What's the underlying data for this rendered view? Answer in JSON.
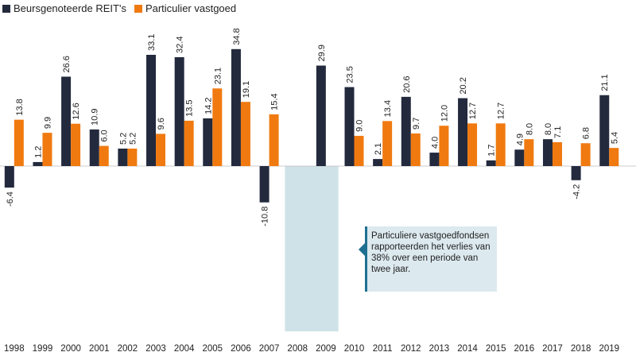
{
  "legend": {
    "series1": "Beursgenoteerde REIT's",
    "series2": "Particulier vastgoed"
  },
  "annotation": {
    "text": "Particuliere vastgoedfondsen rapporteerden het verlies van 38% over een periode van twee jaar."
  },
  "colors": {
    "reits": "#232a3d",
    "private": "#f07a10",
    "highlight": "#cfe2e8",
    "callout_accent": "#1f7090"
  },
  "chart_data": {
    "type": "bar",
    "categories": [
      "1998",
      "1999",
      "2000",
      "2001",
      "2002",
      "2003",
      "2004",
      "2005",
      "2006",
      "2007",
      "2008",
      "2009",
      "2010",
      "2011",
      "2012",
      "2013",
      "2014",
      "2015",
      "2016",
      "2017",
      "2018",
      "2019"
    ],
    "series": [
      {
        "name": "Beursgenoteerde REIT's",
        "values": [
          -6.4,
          1.2,
          26.6,
          10.9,
          5.2,
          33.1,
          32.4,
          14.2,
          34.8,
          -10.8,
          null,
          29.9,
          23.5,
          2.1,
          20.6,
          4.0,
          20.2,
          1.7,
          4.9,
          8.0,
          -4.2,
          21.1
        ]
      },
      {
        "name": "Particulier vastgoed",
        "values": [
          13.8,
          9.9,
          12.6,
          6.0,
          5.2,
          9.6,
          13.5,
          23.1,
          19.1,
          15.4,
          null,
          null,
          9.0,
          13.4,
          9.7,
          12.0,
          12.7,
          12.7,
          8.0,
          7.1,
          6.8,
          5.4
        ]
      }
    ],
    "labels": [
      [
        "-6.4",
        "1.2",
        "26.6",
        "10.9",
        "5.2",
        "33.1",
        "32.4",
        "14.2",
        "34.8",
        "-10.8",
        "",
        "29.9",
        "23.5",
        "2.1",
        "20.6",
        "4.0",
        "20.2",
        "1.7",
        "4.9",
        "8.0",
        "-4.2",
        "21.1"
      ],
      [
        "13.8",
        "9.9",
        "12.6",
        "6.0",
        "5.2",
        "9.6",
        "13.5",
        "23.1",
        "19.1",
        "15.4",
        "",
        "",
        "9.0",
        "13.4",
        "9.7",
        "12.0",
        "12.7",
        "12.7",
        "8.0",
        "7.1",
        "6.8",
        "5.4"
      ]
    ],
    "highlight_categories": [
      "2008",
      "2009"
    ],
    "legend_position": "top-left",
    "grid": false
  }
}
